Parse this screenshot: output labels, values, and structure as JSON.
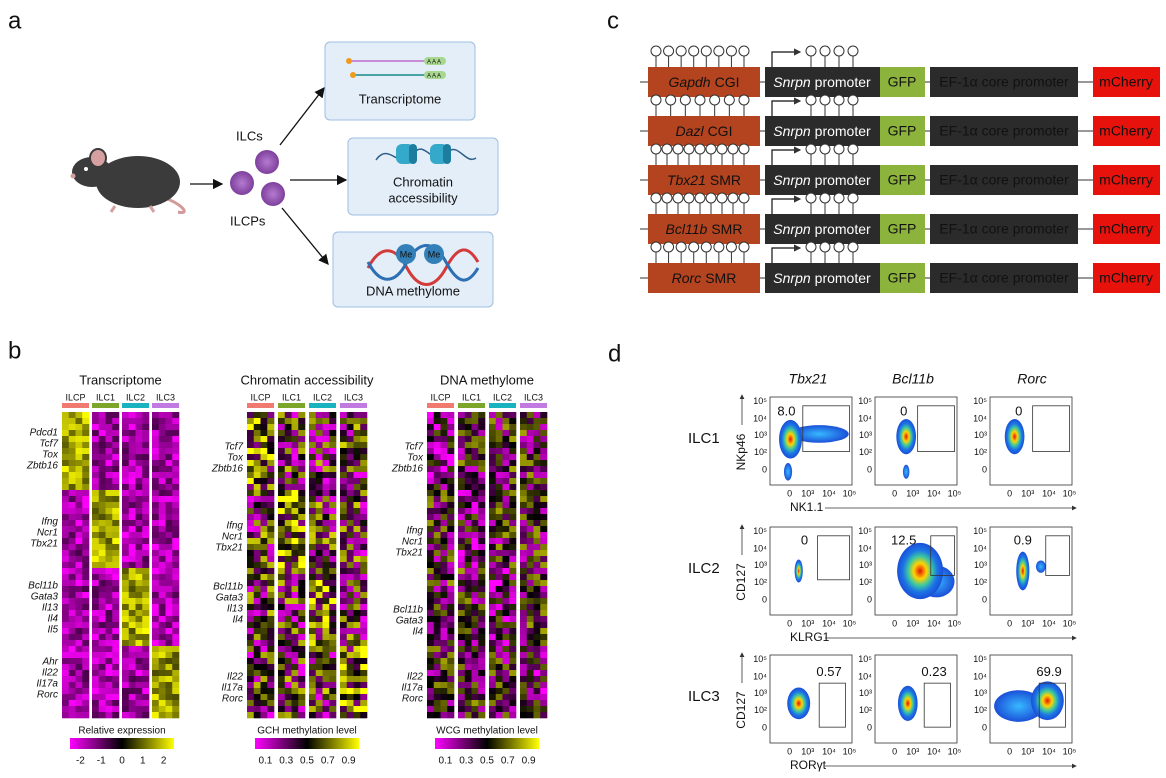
{
  "panel_labels": [
    "a",
    "b",
    "c",
    "d"
  ],
  "panel_a": {
    "cell_labels": [
      "ILCs",
      "ILCPs"
    ],
    "poly_a": "A A A",
    "methyl_tag": "Me",
    "outputs": [
      [
        "Transcriptome"
      ],
      [
        "Chromatin",
        "accessibility"
      ],
      [
        "DNA methylome"
      ]
    ]
  },
  "panel_b": {
    "heatmaps": [
      {
        "title": "Transcriptome",
        "columns": [
          "ILCP",
          "ILC1",
          "ILC2",
          "ILC3"
        ],
        "gene_groups": [
          [
            "Pdcd1",
            "Tcf7",
            "Tox",
            "Zbtb16"
          ],
          [
            "Ifng",
            "Ncr1",
            "Tbx21"
          ],
          [
            "Bcl11b",
            "Gata3",
            "Il13",
            "Il4",
            "Il5"
          ],
          [
            "Ahr",
            "Il22",
            "Il17a",
            "Rorc"
          ]
        ],
        "scale_label": "Relative expression",
        "scale_ticks": [
          "-2",
          "-1",
          "0",
          "1",
          "2"
        ]
      },
      {
        "title": "Chromatin accessibility",
        "columns": [
          "ILCP",
          "ILC1",
          "ILC2",
          "ILC3"
        ],
        "gene_groups": [
          [
            "Tcf7",
            "Tox",
            "Zbtb16"
          ],
          [
            "Ifng",
            "Ncr1",
            "Tbx21"
          ],
          [
            "Bcl11b",
            "Gata3",
            "Il13",
            "Il4"
          ],
          [
            "Il22",
            "Il17a",
            "Rorc"
          ]
        ],
        "scale_label": "GCH methylation level",
        "scale_ticks": [
          "0.1",
          "0.3",
          "0.5",
          "0.7",
          "0.9"
        ]
      },
      {
        "title": "DNA methylome",
        "columns": [
          "ILCP",
          "ILC1",
          "ILC2",
          "ILC3"
        ],
        "gene_groups": [
          [
            "Tcf7",
            "Tox",
            "Zbtb16"
          ],
          [
            "Ifng",
            "Ncr1",
            "Tbx21"
          ],
          [
            "Bcl11b",
            "Gata3",
            "Il4"
          ],
          [
            "Il22",
            "Il17a",
            "Rorc"
          ]
        ],
        "scale_label": "WCG methylation level",
        "scale_ticks": [
          "0.1",
          "0.3",
          "0.5",
          "0.7",
          "0.9"
        ]
      }
    ]
  },
  "panel_c": {
    "rows": [
      {
        "gene": "Gapdh",
        "region": "CGI"
      },
      {
        "gene": "Dazl",
        "region": "CGI"
      },
      {
        "gene": "Tbx21",
        "region": "SMR"
      },
      {
        "gene": "Bcl11b",
        "region": "SMR"
      },
      {
        "gene": "Rorc",
        "region": "SMR"
      }
    ],
    "promoter_gene": "Snrpn",
    "promoter": "promoter",
    "reporter": "GFP",
    "core_promoter": "EF-1α core promoter",
    "reporter2": "mCherry"
  },
  "panel_d": {
    "columns": [
      "Tbx21",
      "Bcl11b",
      "Rorc"
    ],
    "rows": [
      {
        "name": "ILC1",
        "y_label": "NKp46",
        "x_label": "NK1.1",
        "gates": [
          "8.0",
          "0",
          "0"
        ]
      },
      {
        "name": "ILC2",
        "y_label": "CD127",
        "x_label": "KLRG1",
        "gates": [
          "0",
          "12.5",
          "0.9"
        ]
      },
      {
        "name": "ILC3",
        "y_label": "CD127",
        "x_label": "RORγt",
        "gates": [
          "0.57",
          "0.23",
          "69.9"
        ]
      }
    ],
    "x_ticks": [
      "0",
      "10³",
      "10⁴",
      "10⁵"
    ],
    "y_ticks": [
      "10⁵",
      "10⁴",
      "10³",
      "10²",
      "0"
    ]
  }
}
